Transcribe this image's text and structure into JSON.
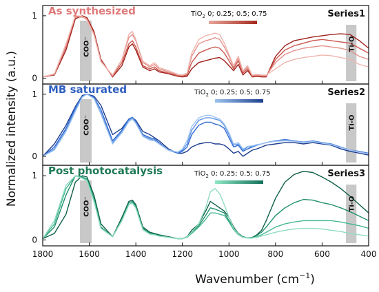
{
  "chart_data": {
    "type": "line",
    "xlabel": "Wavenumber (cm",
    "xlabel_sup": "−1",
    "xlabel_end": ")",
    "ylabel": "Normalized intensity (a.u.)",
    "x_reversed": true,
    "xlim": [
      1800,
      400
    ],
    "x_ticks": [
      "1800",
      "1600",
      "1400",
      "1200",
      "1000",
      "800",
      "600",
      "400"
    ],
    "y_ticks": [
      "0",
      "1"
    ],
    "bands": [
      {
        "label": "COO⁻",
        "x_center": 1615,
        "x_width": 50
      },
      {
        "label": "Ti-O",
        "x_center": 475,
        "x_width": 45
      }
    ],
    "legend_prefix": "TiO",
    "legend_sub": "2",
    "legend_values": " 0; 0.25; 0.5; 0.75",
    "x": [
      1800,
      1750,
      1700,
      1660,
      1630,
      1610,
      1580,
      1550,
      1500,
      1460,
      1430,
      1415,
      1400,
      1370,
      1340,
      1320,
      1300,
      1260,
      1220,
      1200,
      1180,
      1160,
      1130,
      1100,
      1080,
      1060,
      1040,
      1020,
      1000,
      980,
      960,
      940,
      920,
      900,
      880,
      860,
      840,
      800,
      760,
      720,
      680,
      640,
      600,
      560,
      520,
      480,
      440,
      400
    ],
    "panels": [
      {
        "title": "As synthesized",
        "series_label": "Series1",
        "title_color": "#e07b7b",
        "ylim": [
          -0.05,
          1.12
        ],
        "gradient": [
          "#e8a69a",
          "#a42a1e"
        ],
        "series": [
          {
            "color": "#a0201a",
            "values": [
              0.02,
              0.05,
              0.45,
              0.95,
              1.0,
              0.97,
              0.75,
              0.3,
              0.02,
              0.2,
              0.5,
              0.55,
              0.45,
              0.18,
              0.12,
              0.15,
              0.1,
              0.07,
              0.03,
              0.02,
              0.03,
              0.15,
              0.25,
              0.28,
              0.3,
              0.32,
              0.33,
              0.28,
              0.2,
              0.12,
              0.22,
              0.05,
              0.12,
              0.02,
              0.03,
              0.02,
              0.02,
              0.35,
              0.52,
              0.6,
              0.63,
              0.66,
              0.68,
              0.7,
              0.71,
              0.7,
              0.6,
              0.48
            ]
          },
          {
            "color": "#c9574d",
            "values": [
              0.02,
              0.06,
              0.5,
              0.98,
              0.98,
              0.95,
              0.72,
              0.28,
              0.03,
              0.25,
              0.55,
              0.6,
              0.5,
              0.2,
              0.15,
              0.18,
              0.12,
              0.08,
              0.04,
              0.03,
              0.05,
              0.25,
              0.4,
              0.45,
              0.48,
              0.5,
              0.48,
              0.4,
              0.28,
              0.15,
              0.28,
              0.08,
              0.15,
              0.03,
              0.04,
              0.03,
              0.03,
              0.3,
              0.45,
              0.52,
              0.56,
              0.6,
              0.62,
              0.6,
              0.58,
              0.56,
              0.48,
              0.4
            ]
          },
          {
            "color": "#e2908a",
            "values": [
              0.02,
              0.06,
              0.52,
              1.0,
              0.99,
              0.94,
              0.7,
              0.27,
              0.04,
              0.3,
              0.65,
              0.7,
              0.6,
              0.25,
              0.18,
              0.22,
              0.15,
              0.1,
              0.05,
              0.04,
              0.07,
              0.35,
              0.55,
              0.6,
              0.62,
              0.65,
              0.62,
              0.5,
              0.35,
              0.18,
              0.32,
              0.1,
              0.18,
              0.04,
              0.05,
              0.04,
              0.04,
              0.25,
              0.38,
              0.44,
              0.48,
              0.5,
              0.52,
              0.5,
              0.48,
              0.44,
              0.35,
              0.3
            ]
          },
          {
            "color": "#efb5ad",
            "values": [
              0.02,
              0.07,
              0.55,
              1.0,
              0.99,
              0.93,
              0.7,
              0.26,
              0.05,
              0.3,
              0.7,
              0.75,
              0.62,
              0.27,
              0.2,
              0.25,
              0.17,
              0.12,
              0.06,
              0.05,
              0.08,
              0.4,
              0.62,
              0.68,
              0.7,
              0.72,
              0.7,
              0.56,
              0.38,
              0.2,
              0.35,
              0.12,
              0.2,
              0.05,
              0.06,
              0.05,
              0.05,
              0.15,
              0.25,
              0.3,
              0.33,
              0.35,
              0.37,
              0.36,
              0.33,
              0.3,
              0.22,
              0.18
            ]
          }
        ]
      },
      {
        "title": "MB saturated",
        "series_label": "Series2",
        "title_color": "#2f5fc0",
        "ylim": [
          -0.1,
          1.12
        ],
        "gradient": [
          "#9cc3ee",
          "#1e3f8f"
        ],
        "series": [
          {
            "color": "#1d3c8e",
            "values": [
              0.0,
              0.2,
              0.5,
              0.8,
              0.98,
              1.0,
              0.97,
              0.82,
              0.35,
              0.45,
              0.6,
              0.62,
              0.58,
              0.4,
              0.35,
              0.3,
              0.25,
              0.12,
              0.05,
              0.05,
              0.08,
              0.15,
              0.2,
              0.22,
              0.22,
              0.2,
              0.2,
              0.18,
              0.12,
              0.05,
              0.08,
              0.0,
              0.05,
              0.1,
              0.12,
              0.15,
              0.18,
              0.2,
              0.22,
              0.22,
              0.2,
              0.22,
              0.2,
              0.18,
              0.12,
              0.08,
              0.05,
              0.02
            ]
          },
          {
            "color": "#2f6ad0",
            "values": [
              0.0,
              0.15,
              0.45,
              0.78,
              0.97,
              1.0,
              0.95,
              0.75,
              0.25,
              0.42,
              0.6,
              0.63,
              0.56,
              0.35,
              0.3,
              0.28,
              0.22,
              0.1,
              0.05,
              0.08,
              0.15,
              0.35,
              0.5,
              0.55,
              0.55,
              0.52,
              0.5,
              0.45,
              0.3,
              0.15,
              0.18,
              0.08,
              0.12,
              0.15,
              0.18,
              0.2,
              0.22,
              0.25,
              0.27,
              0.25,
              0.22,
              0.25,
              0.22,
              0.2,
              0.15,
              0.1,
              0.08,
              0.05
            ]
          },
          {
            "color": "#5b93e6",
            "values": [
              0.0,
              0.12,
              0.42,
              0.75,
              0.96,
              1.0,
              0.94,
              0.7,
              0.22,
              0.4,
              0.58,
              0.62,
              0.55,
              0.33,
              0.28,
              0.26,
              0.2,
              0.1,
              0.06,
              0.1,
              0.2,
              0.42,
              0.58,
              0.62,
              0.62,
              0.6,
              0.58,
              0.5,
              0.35,
              0.18,
              0.2,
              0.1,
              0.15,
              0.16,
              0.18,
              0.2,
              0.22,
              0.25,
              0.26,
              0.25,
              0.23,
              0.25,
              0.22,
              0.2,
              0.15,
              0.1,
              0.07,
              0.04
            ]
          },
          {
            "color": "#9fc3f0",
            "values": [
              0.0,
              0.1,
              0.4,
              0.72,
              0.95,
              1.0,
              0.93,
              0.68,
              0.2,
              0.38,
              0.56,
              0.6,
              0.53,
              0.32,
              0.26,
              0.25,
              0.2,
              0.1,
              0.07,
              0.12,
              0.25,
              0.48,
              0.62,
              0.66,
              0.66,
              0.63,
              0.6,
              0.52,
              0.38,
              0.2,
              0.22,
              0.12,
              0.16,
              0.17,
              0.19,
              0.2,
              0.22,
              0.24,
              0.25,
              0.24,
              0.22,
              0.24,
              0.21,
              0.19,
              0.14,
              0.1,
              0.07,
              0.04
            ]
          }
        ]
      },
      {
        "title": "Post photocatalysis",
        "series_label": "Series3",
        "title_color": "#1f7a55",
        "ylim": [
          -0.05,
          1.12
        ],
        "gradient": [
          "#8ee6c3",
          "#11715a"
        ],
        "series": [
          {
            "color": "#0e5e49",
            "values": [
              0.02,
              0.1,
              0.4,
              0.9,
              1.0,
              0.98,
              0.7,
              0.25,
              0.05,
              0.35,
              0.6,
              0.62,
              0.55,
              0.2,
              0.12,
              0.1,
              0.08,
              0.05,
              0.02,
              0.02,
              0.05,
              0.15,
              0.25,
              0.45,
              0.6,
              0.55,
              0.5,
              0.45,
              0.35,
              0.2,
              0.1,
              0.05,
              0.03,
              0.04,
              0.08,
              0.15,
              0.3,
              0.65,
              0.9,
              1.02,
              1.07,
              1.05,
              0.98,
              0.9,
              0.8,
              0.68,
              0.55,
              0.42
            ]
          },
          {
            "color": "#1f8f6d",
            "values": [
              0.02,
              0.2,
              0.7,
              1.0,
              0.98,
              0.95,
              0.65,
              0.2,
              0.05,
              0.32,
              0.58,
              0.6,
              0.52,
              0.18,
              0.1,
              0.09,
              0.07,
              0.04,
              0.02,
              0.02,
              0.05,
              0.12,
              0.22,
              0.38,
              0.5,
              0.48,
              0.45,
              0.42,
              0.3,
              0.18,
              0.09,
              0.05,
              0.03,
              0.04,
              0.07,
              0.12,
              0.2,
              0.38,
              0.5,
              0.58,
              0.63,
              0.62,
              0.58,
              0.55,
              0.5,
              0.44,
              0.37,
              0.3
            ]
          },
          {
            "color": "#46b892",
            "values": [
              0.02,
              0.25,
              0.8,
              1.0,
              0.97,
              0.94,
              0.62,
              0.18,
              0.05,
              0.3,
              0.55,
              0.58,
              0.5,
              0.16,
              0.09,
              0.08,
              0.06,
              0.04,
              0.02,
              0.02,
              0.04,
              0.1,
              0.2,
              0.32,
              0.42,
              0.42,
              0.4,
              0.38,
              0.28,
              0.16,
              0.08,
              0.04,
              0.03,
              0.03,
              0.05,
              0.08,
              0.12,
              0.2,
              0.25,
              0.28,
              0.3,
              0.3,
              0.3,
              0.3,
              0.28,
              0.25,
              0.22,
              0.18
            ]
          },
          {
            "color": "#8fdcbf",
            "values": [
              0.02,
              0.3,
              0.85,
              1.0,
              0.96,
              0.92,
              0.6,
              0.18,
              0.05,
              0.3,
              0.55,
              0.57,
              0.5,
              0.16,
              0.09,
              0.08,
              0.06,
              0.04,
              0.02,
              0.02,
              0.05,
              0.12,
              0.25,
              0.5,
              0.75,
              0.8,
              0.72,
              0.55,
              0.35,
              0.18,
              0.09,
              0.04,
              0.03,
              0.03,
              0.04,
              0.06,
              0.08,
              0.12,
              0.15,
              0.17,
              0.18,
              0.18,
              0.17,
              0.15,
              0.13,
              0.1,
              0.08,
              0.06
            ]
          }
        ]
      }
    ]
  }
}
